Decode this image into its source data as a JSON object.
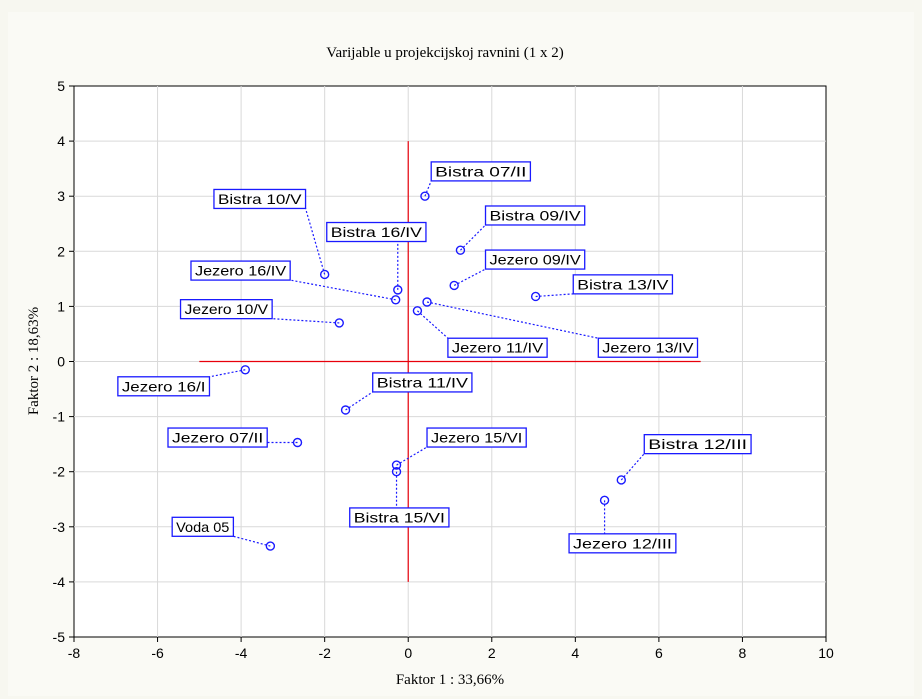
{
  "colors": {
    "point": "#1a1aff",
    "reference_line": "#e8000b",
    "grid": "#d9d9d9"
  },
  "chart_data": {
    "type": "scatter",
    "title": "Varijable u projekcijskoj ravnini (1 x 2)",
    "xlabel": "Faktor 1 : 33,66%",
    "ylabel": "Faktor 2 : 18,63%",
    "xlim": [
      -8,
      10
    ],
    "ylim": [
      -5,
      5
    ],
    "xticks": [
      -8,
      -6,
      -4,
      -2,
      0,
      2,
      4,
      6,
      8,
      10
    ],
    "yticks": [
      -5,
      -4,
      -3,
      -2,
      -1,
      0,
      1,
      2,
      3,
      4,
      5
    ],
    "grid": true,
    "reference_lines": {
      "horizontal": {
        "y": 0,
        "x_from": -5,
        "x_to": 7
      },
      "vertical": {
        "x": 0,
        "y_from": -4,
        "y_to": 4
      }
    },
    "points": [
      {
        "label": "Bistra 07/II",
        "x": 0.4,
        "y": 3.0,
        "lx": 0.55,
        "ly": 3.45
      },
      {
        "label": "Bistra 09/IV",
        "x": 1.25,
        "y": 2.02,
        "lx": 1.85,
        "ly": 2.65
      },
      {
        "label": "Bistra 10/V",
        "x": -2.0,
        "y": 1.58,
        "lx": -4.65,
        "ly": 2.95
      },
      {
        "label": "Bistra 16/IV",
        "x": -0.25,
        "y": 1.3,
        "lx": -1.95,
        "ly": 2.35
      },
      {
        "label": "Jezero 09/IV",
        "x": 1.1,
        "y": 1.38,
        "lx": 1.85,
        "ly": 1.85
      },
      {
        "label": "Bistra 13/IV",
        "x": 3.05,
        "y": 1.18,
        "lx": 3.95,
        "ly": 1.4
      },
      {
        "label": "Jezero 16/IV",
        "x": -0.3,
        "y": 1.12,
        "lx": -5.2,
        "ly": 1.65
      },
      {
        "label": "Jezero 10/V",
        "x": -1.65,
        "y": 0.7,
        "lx": -5.45,
        "ly": 0.95
      },
      {
        "label": "Jezero 11/IV",
        "x": 0.22,
        "y": 0.92,
        "lx": 0.95,
        "ly": 0.25
      },
      {
        "label": "Jezero 13/IV",
        "x": 0.45,
        "y": 1.08,
        "lx": 4.55,
        "ly": 0.25
      },
      {
        "label": "Jezero 16/I",
        "x": -3.9,
        "y": -0.15,
        "lx": -6.95,
        "ly": -0.45
      },
      {
        "label": "Bistra 11/IV",
        "x": -1.5,
        "y": -0.88,
        "lx": -0.85,
        "ly": -0.38
      },
      {
        "label": "Jezero 07/II",
        "x": -2.65,
        "y": -1.47,
        "lx": -5.75,
        "ly": -1.38
      },
      {
        "label": "Jezero 15/VI",
        "x": -0.28,
        "y": -1.88,
        "lx": 0.45,
        "ly": -1.38
      },
      {
        "label": "Bistra 15/VI",
        "x": -0.28,
        "y": -2.0,
        "lx": -1.4,
        "ly": -2.83
      },
      {
        "label": "Bistra 12/III",
        "x": 5.1,
        "y": -2.15,
        "lx": 5.65,
        "ly": -1.5
      },
      {
        "label": "Jezero 12/III",
        "x": 4.7,
        "y": -2.52,
        "lx": 3.85,
        "ly": -3.3
      },
      {
        "label": "Voda 05",
        "x": -3.3,
        "y": -3.35,
        "lx": -5.65,
        "ly": -3.0
      }
    ]
  }
}
